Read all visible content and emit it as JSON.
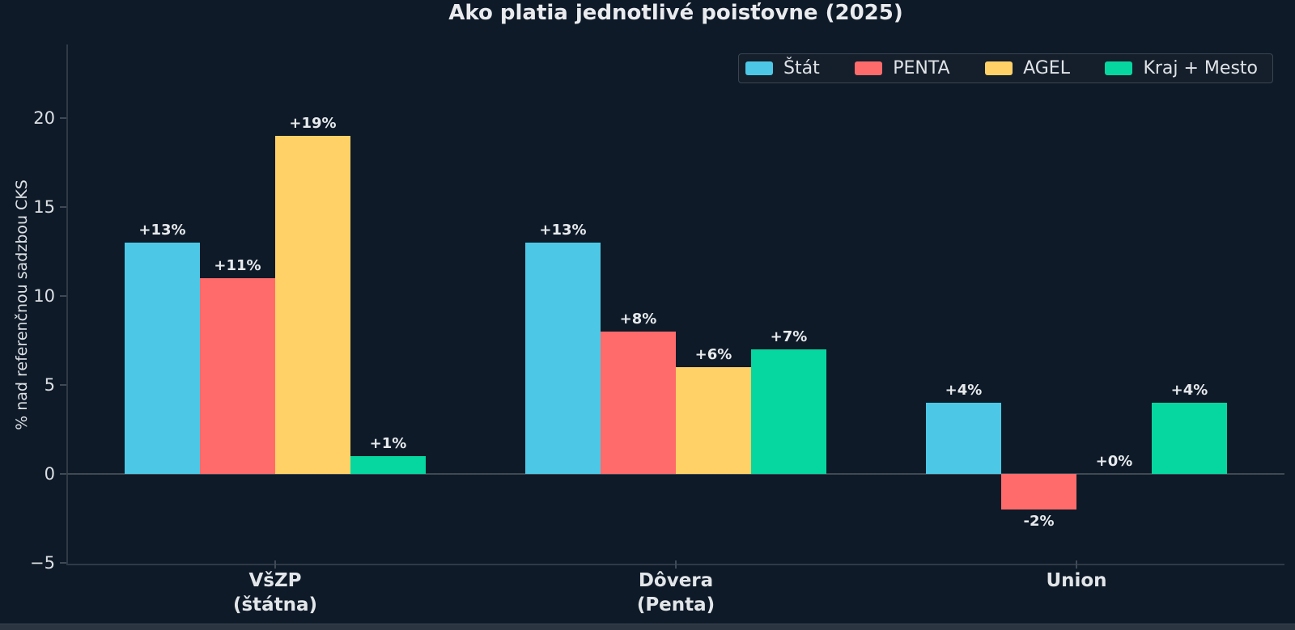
{
  "title": "Ako platia jednotlivé poisťovne (2025)",
  "y_axis": {
    "label": "% nad referenčnou sadzbou CKS",
    "ticks": [
      20,
      15,
      10,
      5,
      0,
      -5
    ],
    "tick_labels": [
      "20",
      "15",
      "10",
      "5",
      "0",
      "−5"
    ]
  },
  "colors": {
    "background": "#0e1a28",
    "text": "#e7eaed",
    "spine": "#2f3a46",
    "zero_line": "#3e4954",
    "legend_background": "#151f2c",
    "legend_border": "#3a4552"
  },
  "chart_data": {
    "type": "bar",
    "title": "Ako platia jednotlivé poisťovne (2025)",
    "ylabel": "% nad referenčnou sadzbou CKS",
    "xlabel": "",
    "ylim": [
      -5,
      24
    ],
    "grid": false,
    "legend_position": "upper right",
    "categories": [
      "VšZP\n(štátna)",
      "Dôvera\n(Penta)",
      "Union"
    ],
    "series": [
      {
        "name": "Štát",
        "color": "#4cc8e6",
        "values": [
          13,
          13,
          4
        ],
        "labels": [
          "+13%",
          "+13%",
          "+4%"
        ]
      },
      {
        "name": "PENTA",
        "color": "#ff6b6b",
        "values": [
          11,
          8,
          -2
        ],
        "labels": [
          "+11%",
          "+8%",
          "-2%"
        ]
      },
      {
        "name": "AGEL",
        "color": "#ffd166",
        "values": [
          19,
          6,
          0
        ],
        "labels": [
          "+19%",
          "+6%",
          "+0%"
        ]
      },
      {
        "name": "Kraj + Mesto",
        "color": "#06d6a0",
        "values": [
          1,
          7,
          4
        ],
        "labels": [
          "+1%",
          "+7%",
          "+4%"
        ]
      }
    ]
  }
}
